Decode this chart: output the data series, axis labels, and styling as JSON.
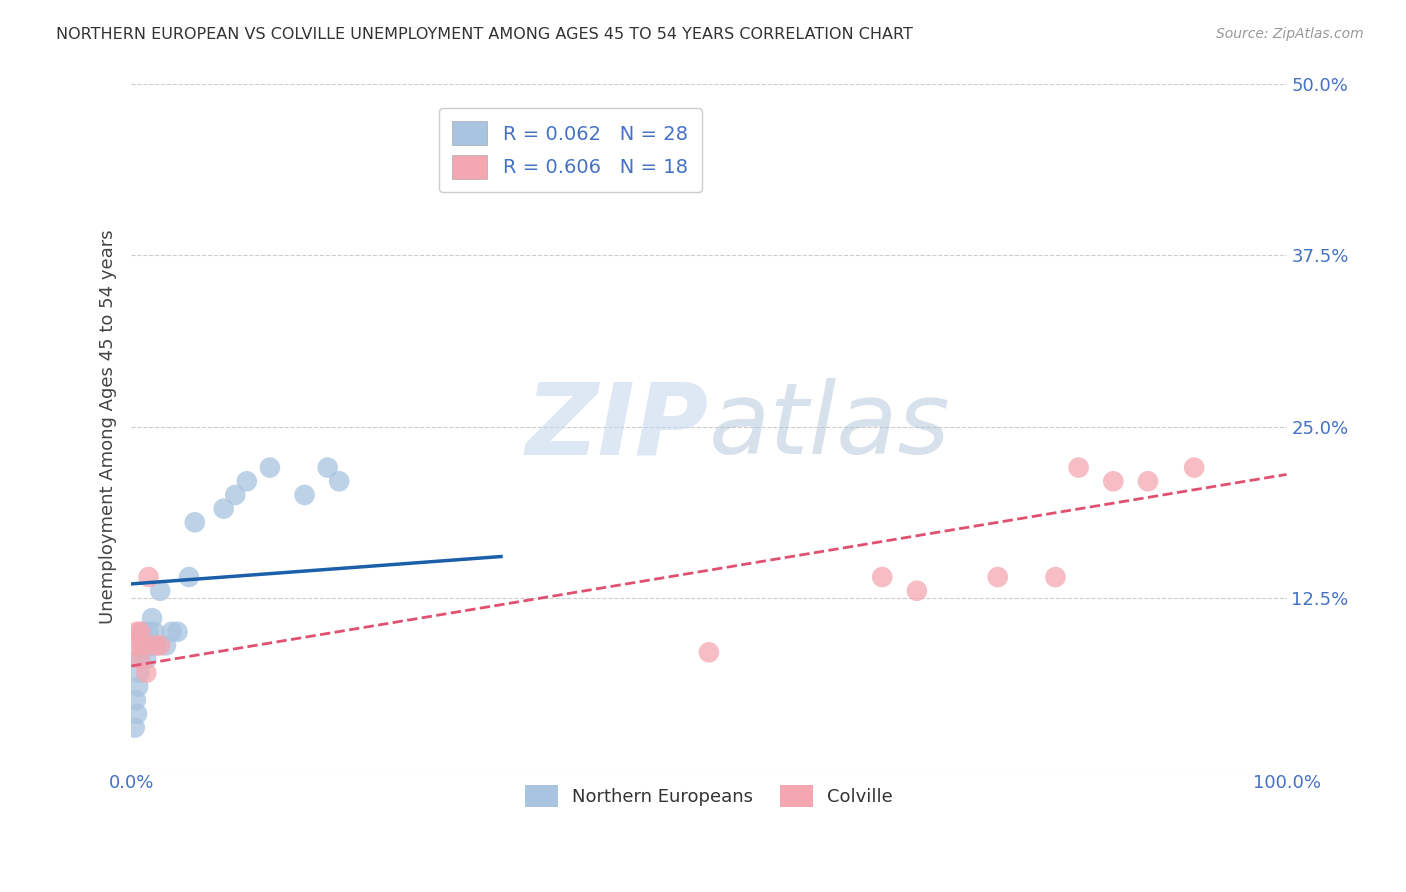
{
  "title": "NORTHERN EUROPEAN VS COLVILLE UNEMPLOYMENT AMONG AGES 45 TO 54 YEARS CORRELATION CHART",
  "source": "Source: ZipAtlas.com",
  "ylabel": "Unemployment Among Ages 45 to 54 years",
  "xlabel": "",
  "xlim": [
    0,
    1
  ],
  "ylim": [
    0,
    0.5
  ],
  "xticks": [
    0.0,
    0.25,
    0.5,
    0.75,
    1.0
  ],
  "xticklabels": [
    "0.0%",
    "",
    "",
    "",
    "100.0%"
  ],
  "yticks": [
    0.0,
    0.125,
    0.25,
    0.375,
    0.5
  ],
  "yticklabels": [
    "",
    "12.5%",
    "25.0%",
    "37.5%",
    "50.0%"
  ],
  "blue_color": "#a8c4e0",
  "blue_line_color": "#1a5fa8",
  "pink_color": "#f4a7b0",
  "pink_line_color": "#e05070",
  "blue_R": 0.062,
  "blue_N": 28,
  "pink_R": 0.606,
  "pink_N": 18,
  "blue_x": [
    0.003,
    0.004,
    0.005,
    0.006,
    0.007,
    0.008,
    0.009,
    0.01,
    0.012,
    0.013,
    0.015,
    0.016,
    0.018,
    0.02,
    0.022,
    0.025,
    0.03,
    0.035,
    0.04,
    0.05,
    0.055,
    0.08,
    0.09,
    0.1,
    0.12,
    0.15,
    0.17,
    0.18
  ],
  "blue_y": [
    0.03,
    0.05,
    0.04,
    0.06,
    0.07,
    0.08,
    0.09,
    0.1,
    0.09,
    0.08,
    0.1,
    0.09,
    0.11,
    0.1,
    0.09,
    0.13,
    0.09,
    0.1,
    0.1,
    0.14,
    0.18,
    0.19,
    0.2,
    0.21,
    0.22,
    0.2,
    0.22,
    0.21
  ],
  "pink_x": [
    0.003,
    0.005,
    0.007,
    0.008,
    0.01,
    0.013,
    0.015,
    0.02,
    0.025,
    0.5,
    0.65,
    0.68,
    0.75,
    0.8,
    0.82,
    0.85,
    0.88,
    0.92
  ],
  "pink_y": [
    0.09,
    0.1,
    0.08,
    0.1,
    0.09,
    0.07,
    0.14,
    0.09,
    0.09,
    0.085,
    0.14,
    0.13,
    0.14,
    0.14,
    0.22,
    0.21,
    0.21,
    0.22
  ],
  "blue_trend_x0": 0.0,
  "blue_trend_y0": 0.135,
  "blue_trend_x1": 0.32,
  "blue_trend_y1": 0.155,
  "pink_trend_x0": 0.0,
  "pink_trend_y0": 0.075,
  "pink_trend_x1": 1.0,
  "pink_trend_y1": 0.215,
  "watermark_zip": "ZIP",
  "watermark_atlas": "atlas",
  "legend_label_blue": "Northern Europeans",
  "legend_label_pink": "Colville",
  "background_color": "#ffffff",
  "grid_color": "#cccccc"
}
